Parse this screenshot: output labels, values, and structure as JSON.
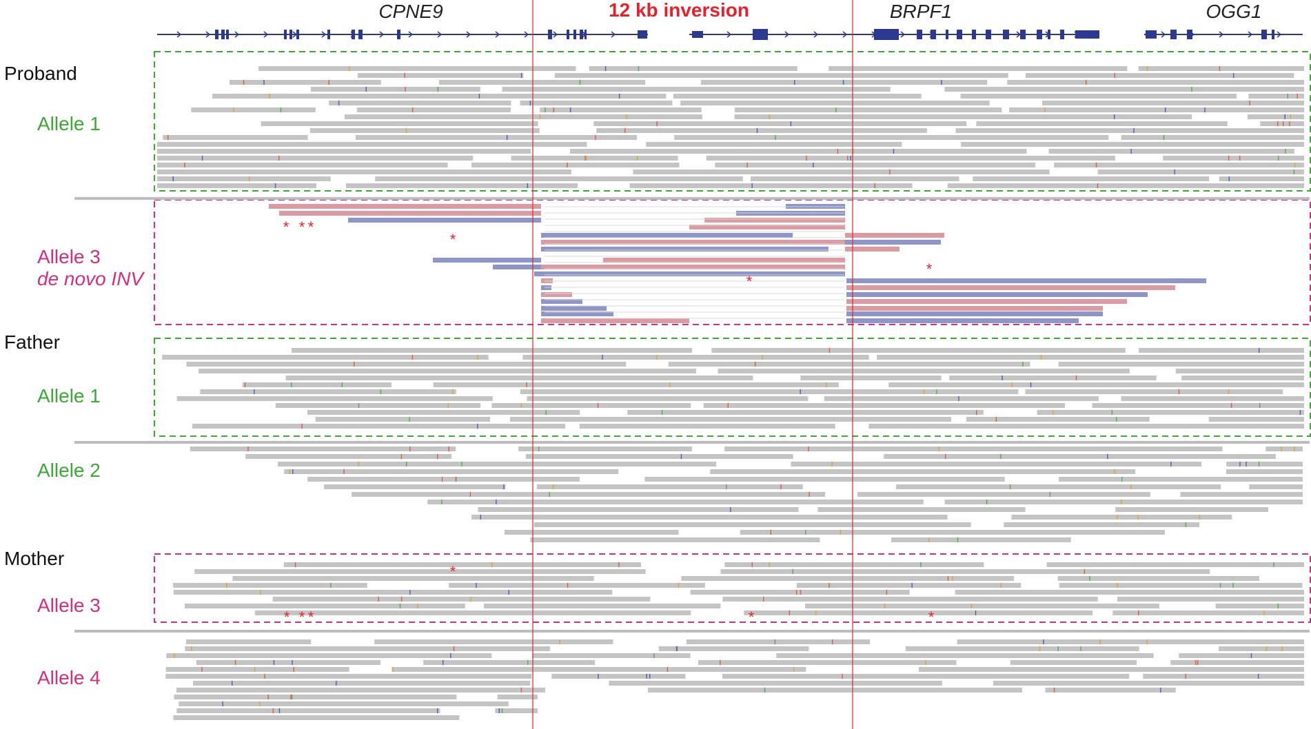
{
  "figure": {
    "genes": [
      "CPNE9",
      "12 kb inversion",
      "BRPF1",
      "OGG1"
    ],
    "samples": [
      "Proband",
      "Father",
      "Mother"
    ],
    "alleles": [
      {
        "text": "Allele 1",
        "kind": "normal"
      },
      {
        "text": "Allele 3",
        "kind": "inv"
      },
      {
        "text": "de novo INV",
        "kind": "inv"
      },
      {
        "text": "Allele 1",
        "kind": "normal"
      },
      {
        "text": "Allele 2",
        "kind": "normal"
      },
      {
        "text": "Allele 3",
        "kind": "inv"
      },
      {
        "text": "Allele 4",
        "kind": "inv"
      }
    ],
    "star_symbol": "*",
    "colors": {
      "gene_model": "#2b3a8f",
      "read_gray": "#c4c4c4",
      "read_red": "#dc9ba3",
      "read_blue": "#8e95c8",
      "normal_allele": "#3aaa35",
      "inversion_allele": "#d62d7f",
      "breakpoint": "#e8202a"
    }
  }
}
